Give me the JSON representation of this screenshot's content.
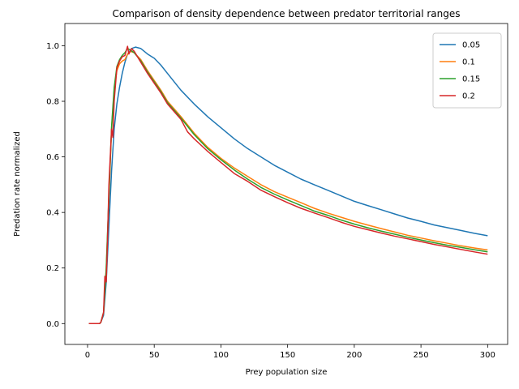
{
  "chart_data": {
    "type": "line",
    "title": "Comparison of density dependence between predator territorial ranges",
    "xlabel": "Prey population size",
    "ylabel": "Predation rate normalized",
    "xlim": [
      -17,
      315
    ],
    "ylim": [
      -0.075,
      1.08
    ],
    "xticks": [
      0,
      50,
      100,
      150,
      200,
      250,
      300
    ],
    "yticks": [
      0.0,
      0.2,
      0.4,
      0.6,
      0.8,
      1.0
    ],
    "xtick_labels": [
      "0",
      "50",
      "100",
      "150",
      "200",
      "250",
      "300"
    ],
    "ytick_labels": [
      "0.0",
      "0.2",
      "0.4",
      "0.6",
      "0.8",
      "1.0"
    ],
    "grid": false,
    "legend_position": "top-right",
    "series": [
      {
        "name": "0.05",
        "color": "#1f77b4",
        "points": [
          [
            1,
            0
          ],
          [
            9,
            0
          ],
          [
            10,
            0.005
          ],
          [
            12,
            0.03
          ],
          [
            14,
            0.15
          ],
          [
            16,
            0.35
          ],
          [
            18,
            0.55
          ],
          [
            20,
            0.7
          ],
          [
            22,
            0.79
          ],
          [
            24,
            0.85
          ],
          [
            26,
            0.9
          ],
          [
            28,
            0.94
          ],
          [
            30,
            0.97
          ],
          [
            33,
            0.99
          ],
          [
            36,
            0.995
          ],
          [
            40,
            0.99
          ],
          [
            45,
            0.97
          ],
          [
            50,
            0.955
          ],
          [
            55,
            0.93
          ],
          [
            60,
            0.9
          ],
          [
            70,
            0.84
          ],
          [
            80,
            0.79
          ],
          [
            90,
            0.745
          ],
          [
            100,
            0.705
          ],
          [
            110,
            0.665
          ],
          [
            120,
            0.63
          ],
          [
            130,
            0.6
          ],
          [
            140,
            0.57
          ],
          [
            150,
            0.545
          ],
          [
            160,
            0.52
          ],
          [
            170,
            0.5
          ],
          [
            180,
            0.48
          ],
          [
            190,
            0.46
          ],
          [
            200,
            0.44
          ],
          [
            210,
            0.425
          ],
          [
            220,
            0.41
          ],
          [
            230,
            0.395
          ],
          [
            240,
            0.38
          ],
          [
            250,
            0.368
          ],
          [
            260,
            0.355
          ],
          [
            270,
            0.345
          ],
          [
            280,
            0.335
          ],
          [
            290,
            0.325
          ],
          [
            300,
            0.316
          ]
        ]
      },
      {
        "name": "0.1",
        "color": "#ff7f0e",
        "points": [
          [
            1,
            0
          ],
          [
            9,
            0
          ],
          [
            10,
            0.005
          ],
          [
            12,
            0.04
          ],
          [
            14,
            0.2
          ],
          [
            16,
            0.45
          ],
          [
            18,
            0.7
          ],
          [
            20,
            0.84
          ],
          [
            22,
            0.91
          ],
          [
            24,
            0.935
          ],
          [
            26,
            0.945
          ],
          [
            28,
            0.95
          ],
          [
            30,
            0.97
          ],
          [
            32,
            0.98
          ],
          [
            35,
            0.975
          ],
          [
            40,
            0.95
          ],
          [
            45,
            0.91
          ],
          [
            50,
            0.875
          ],
          [
            55,
            0.84
          ],
          [
            60,
            0.8
          ],
          [
            70,
            0.745
          ],
          [
            80,
            0.685
          ],
          [
            90,
            0.635
          ],
          [
            100,
            0.595
          ],
          [
            110,
            0.56
          ],
          [
            120,
            0.53
          ],
          [
            130,
            0.5
          ],
          [
            140,
            0.475
          ],
          [
            150,
            0.455
          ],
          [
            160,
            0.435
          ],
          [
            170,
            0.415
          ],
          [
            180,
            0.398
          ],
          [
            190,
            0.383
          ],
          [
            200,
            0.368
          ],
          [
            210,
            0.355
          ],
          [
            220,
            0.342
          ],
          [
            230,
            0.33
          ],
          [
            240,
            0.318
          ],
          [
            250,
            0.308
          ],
          [
            260,
            0.298
          ],
          [
            270,
            0.289
          ],
          [
            280,
            0.28
          ],
          [
            290,
            0.272
          ],
          [
            300,
            0.265
          ]
        ]
      },
      {
        "name": "0.15",
        "color": "#2ca02c",
        "points": [
          [
            1,
            0
          ],
          [
            9,
            0
          ],
          [
            10,
            0.005
          ],
          [
            12,
            0.04
          ],
          [
            14,
            0.2
          ],
          [
            16,
            0.46
          ],
          [
            18,
            0.71
          ],
          [
            20,
            0.85
          ],
          [
            22,
            0.925
          ],
          [
            24,
            0.95
          ],
          [
            26,
            0.965
          ],
          [
            28,
            0.975
          ],
          [
            30,
            0.99
          ],
          [
            32,
            0.985
          ],
          [
            35,
            0.975
          ],
          [
            40,
            0.945
          ],
          [
            45,
            0.905
          ],
          [
            50,
            0.87
          ],
          [
            55,
            0.835
          ],
          [
            60,
            0.795
          ],
          [
            70,
            0.74
          ],
          [
            80,
            0.68
          ],
          [
            90,
            0.63
          ],
          [
            100,
            0.59
          ],
          [
            110,
            0.553
          ],
          [
            120,
            0.52
          ],
          [
            130,
            0.49
          ],
          [
            140,
            0.466
          ],
          [
            150,
            0.445
          ],
          [
            160,
            0.425
          ],
          [
            170,
            0.405
          ],
          [
            180,
            0.39
          ],
          [
            190,
            0.373
          ],
          [
            200,
            0.358
          ],
          [
            210,
            0.345
          ],
          [
            220,
            0.333
          ],
          [
            230,
            0.322
          ],
          [
            240,
            0.311
          ],
          [
            250,
            0.301
          ],
          [
            260,
            0.291
          ],
          [
            270,
            0.282
          ],
          [
            280,
            0.274
          ],
          [
            290,
            0.266
          ],
          [
            300,
            0.258
          ]
        ]
      },
      {
        "name": "0.2",
        "color": "#d62728",
        "points": [
          [
            1,
            0
          ],
          [
            9,
            0
          ],
          [
            10,
            0.005
          ],
          [
            12,
            0.04
          ],
          [
            13,
            0.17
          ],
          [
            14,
            0.15
          ],
          [
            15,
            0.3
          ],
          [
            16,
            0.5
          ],
          [
            18,
            0.7
          ],
          [
            19,
            0.67
          ],
          [
            20,
            0.8
          ],
          [
            22,
            0.92
          ],
          [
            24,
            0.945
          ],
          [
            26,
            0.96
          ],
          [
            28,
            0.965
          ],
          [
            30,
            0.998
          ],
          [
            31,
            0.97
          ],
          [
            33,
            0.99
          ],
          [
            35,
            0.98
          ],
          [
            40,
            0.94
          ],
          [
            45,
            0.9
          ],
          [
            50,
            0.865
          ],
          [
            55,
            0.83
          ],
          [
            60,
            0.79
          ],
          [
            70,
            0.735
          ],
          [
            75,
            0.69
          ],
          [
            80,
            0.665
          ],
          [
            90,
            0.62
          ],
          [
            100,
            0.58
          ],
          [
            110,
            0.54
          ],
          [
            120,
            0.512
          ],
          [
            130,
            0.48
          ],
          [
            140,
            0.457
          ],
          [
            150,
            0.435
          ],
          [
            160,
            0.415
          ],
          [
            170,
            0.398
          ],
          [
            180,
            0.382
          ],
          [
            190,
            0.365
          ],
          [
            200,
            0.35
          ],
          [
            210,
            0.338
          ],
          [
            220,
            0.326
          ],
          [
            230,
            0.315
          ],
          [
            240,
            0.305
          ],
          [
            250,
            0.295
          ],
          [
            260,
            0.285
          ],
          [
            270,
            0.276
          ],
          [
            280,
            0.267
          ],
          [
            290,
            0.258
          ],
          [
            300,
            0.25
          ]
        ]
      }
    ]
  }
}
